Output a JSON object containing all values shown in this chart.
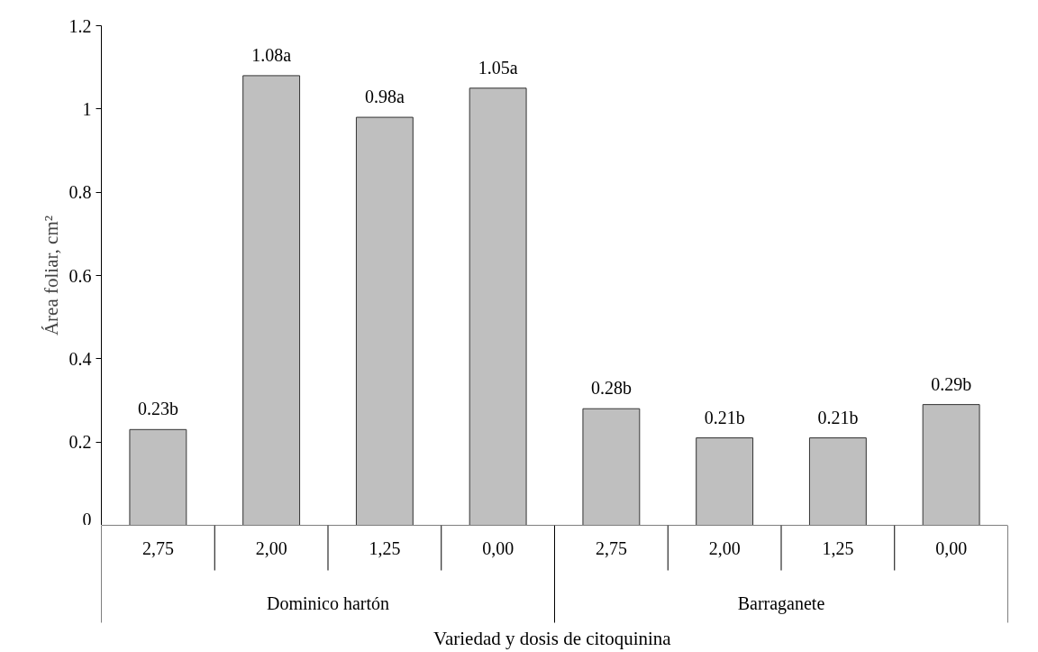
{
  "chart_data": {
    "type": "bar",
    "categories": [
      "2,75",
      "2,00",
      "1,25",
      "0,00",
      "2,75",
      "2,00",
      "1,25",
      "0,00"
    ],
    "values": [
      0.23,
      1.08,
      0.98,
      1.05,
      0.28,
      0.21,
      0.21,
      0.29
    ],
    "color": "#bfbfbf",
    "value_labels": [
      "0.23b",
      "1.08a",
      "0.98a",
      "1.05a",
      "0.28b",
      "0.21b",
      "0.21b",
      "0.29b"
    ],
    "ylim": [
      0,
      1.2
    ],
    "yticks": [
      0,
      0.2,
      0.4,
      0.6,
      0.8,
      1,
      1.2
    ],
    "ylabel": "Área foliar, cm²",
    "xlabel": "Variedad  y dosis de citoquinina",
    "annotations": [
      "Dominico hartón",
      "Barraganete"
    ],
    "grid": false
  }
}
